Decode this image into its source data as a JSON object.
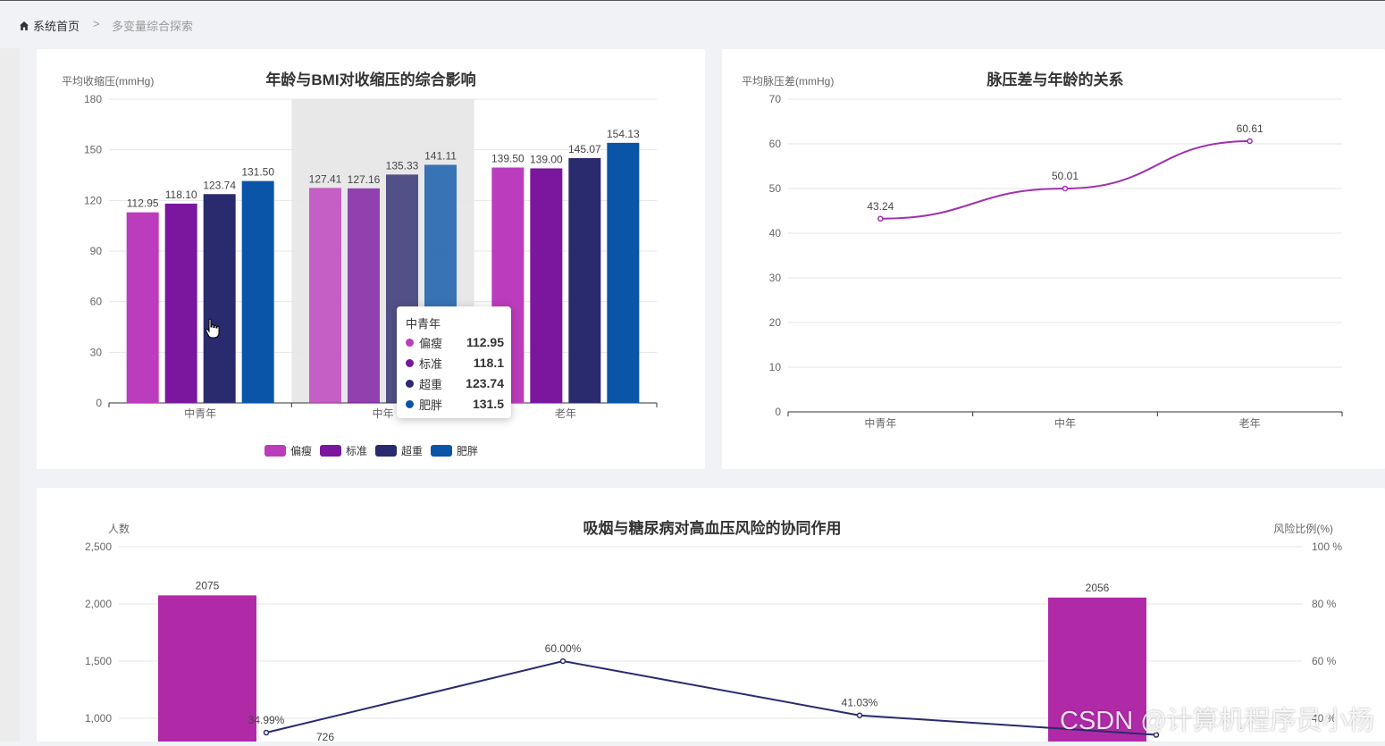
{
  "breadcrumb": {
    "home": "系统首页",
    "separator": ">",
    "current": "多变量综合探索"
  },
  "chart1": {
    "title": "年龄与BMI对收缩压的综合影响",
    "ylabel": "平均收缩压(mmHg)",
    "yticks": [
      "0",
      "30",
      "60",
      "90",
      "120",
      "150",
      "180"
    ],
    "ylim": [
      0,
      180
    ],
    "categories": [
      "中青年",
      "中年",
      "老年"
    ],
    "series": [
      {
        "name": "偏瘦",
        "color": "#bb3cbc",
        "values": [
          112.95,
          127.41,
          139.5
        ],
        "labels": [
          "112.95",
          "127.41",
          "139.50"
        ]
      },
      {
        "name": "标准",
        "color": "#7a179e",
        "values": [
          118.1,
          127.16,
          139.0
        ],
        "labels": [
          "118.10",
          "127.16",
          "139.00"
        ]
      },
      {
        "name": "超重",
        "color": "#2a2a6e",
        "values": [
          123.74,
          135.33,
          145.07
        ],
        "labels": [
          "123.74",
          "135.33",
          "145.07"
        ]
      },
      {
        "name": "肥胖",
        "color": "#0a55a8",
        "values": [
          131.5,
          141.11,
          154.13
        ],
        "labels": [
          "131.50",
          "141.11",
          "154.13"
        ]
      }
    ],
    "highlight_category": "中年",
    "tooltip": {
      "title": "中青年",
      "rows": [
        {
          "name": "偏瘦",
          "value": "112.95",
          "color": "#bb3cbc"
        },
        {
          "name": "标准",
          "value": "118.1",
          "color": "#7a179e"
        },
        {
          "name": "超重",
          "value": "123.74",
          "color": "#2a2a6e"
        },
        {
          "name": "肥胖",
          "value": "131.5",
          "color": "#0a55a8"
        }
      ]
    }
  },
  "chart2": {
    "title": "脉压差与年龄的关系",
    "ylabel": "平均脉压差(mmHg)",
    "yticks": [
      "0",
      "10",
      "20",
      "30",
      "40",
      "50",
      "60",
      "70"
    ],
    "ylim": [
      0,
      70
    ],
    "categories": [
      "中青年",
      "中年",
      "老年"
    ],
    "values": [
      43.24,
      50.01,
      60.61
    ],
    "labels": [
      "43.24",
      "50.01",
      "60.61"
    ],
    "color": "#a030b0"
  },
  "chart3": {
    "title": "吸烟与糖尿病对高血压风险的协同作用",
    "ylabel_left": "人数",
    "ylabel_right": "风险比例(%)",
    "yticks_left": [
      "1,000",
      "1,500",
      "2,000",
      "2,500"
    ],
    "yticks_right": [
      "40 %",
      "60 %",
      "80 %",
      "100 %"
    ],
    "ylim_left": [
      0,
      2500
    ],
    "ylim_right": [
      0,
      100
    ],
    "bars": [
      {
        "value": 2075,
        "label": "2075"
      },
      {
        "value": 726,
        "label": "726"
      },
      {
        "value": null,
        "label": ""
      },
      {
        "value": 2056,
        "label": "2056"
      }
    ],
    "line": {
      "values": [
        34.99,
        60.0,
        41.03,
        34.2
      ],
      "labels": [
        "34.99%",
        "60.00%",
        "41.03%",
        ""
      ]
    },
    "bar_color": "#b02aa8",
    "line_color": "#2a2a6e"
  },
  "watermark": "CSDN @计算机程序员小杨"
}
